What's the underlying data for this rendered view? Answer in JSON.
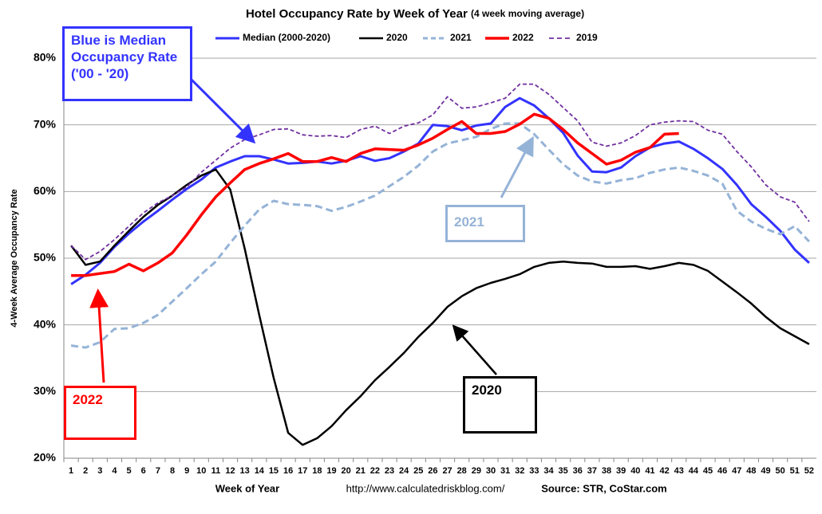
{
  "chart_data": {
    "type": "line",
    "title": "Hotel Occupancy Rate by  Week of Year",
    "subtitle": "(4 week moving average)",
    "x_label": "Week of Year",
    "y_label": "4-Week Average Occupancy Rate",
    "source_url": "http://www.calculatedriskblog.com/",
    "source": "Source: STR, CoStar.com",
    "annotations": [
      "Blue is Median Occupancy Rate ('00 - '20)",
      "2021",
      "2022",
      "2020"
    ],
    "categories": [
      1,
      2,
      3,
      4,
      5,
      6,
      7,
      8,
      9,
      10,
      11,
      12,
      13,
      14,
      15,
      16,
      17,
      18,
      19,
      20,
      21,
      22,
      23,
      24,
      25,
      26,
      27,
      28,
      29,
      30,
      31,
      32,
      33,
      34,
      35,
      36,
      37,
      38,
      39,
      40,
      41,
      42,
      43,
      44,
      45,
      46,
      47,
      48,
      49,
      50,
      51,
      52
    ],
    "ylim": [
      20,
      80
    ],
    "yticks": [
      {
        "value": 20,
        "label": "20%"
      },
      {
        "value": 30,
        "label": "30%"
      },
      {
        "value": 40,
        "label": "40%"
      },
      {
        "value": 50,
        "label": "50%"
      },
      {
        "value": 60,
        "label": "60%"
      },
      {
        "value": 70,
        "label": "70%"
      },
      {
        "value": 80,
        "label": "80%"
      }
    ],
    "grid": true,
    "legend": "top",
    "series": [
      {
        "name": "Median (2000-2020)",
        "color": "#3333ff",
        "dashed": false,
        "values": [
          46.1,
          47.5,
          49.3,
          51.7,
          53.7,
          55.5,
          57.1,
          58.8,
          60.4,
          61.8,
          63.6,
          64.5,
          65.3,
          65.3,
          64.8,
          64.2,
          64.3,
          64.5,
          64.2,
          64.6,
          65.3,
          64.6,
          65,
          66,
          67.2,
          70,
          69.8,
          69.2,
          69.9,
          70.2,
          72.7,
          74,
          72.9,
          71,
          68.8,
          65.4,
          63,
          62.9,
          63.6,
          65.3,
          66.6,
          67.2,
          67.5,
          66.4,
          65,
          63.4,
          61,
          58.1,
          56.2,
          54.1,
          51.3,
          49.3
        ]
      },
      {
        "name": "2020",
        "color": "#000000",
        "dashed": false,
        "values": [
          51.9,
          49,
          49.5,
          51.9,
          54.1,
          56.2,
          58,
          59.4,
          61,
          62.4,
          63.3,
          60.3,
          51.4,
          41.5,
          32,
          23.8,
          22,
          23,
          24.8,
          27.2,
          29.3,
          31.7,
          33.7,
          35.8,
          38.2,
          40.3,
          42.7,
          44.3,
          45.5,
          46.3,
          46.9,
          47.6,
          48.7,
          49.3,
          49.5,
          49.3,
          49.2,
          48.7,
          48.7,
          48.8,
          48.4,
          48.8,
          49.3,
          49,
          48.1,
          46.5,
          44.9,
          43.2,
          41.2,
          39.5,
          38.3,
          37.1
        ]
      },
      {
        "name": "2021",
        "color": "#95b3d7",
        "dashed": true,
        "values": [
          36.9,
          36.6,
          37.4,
          39.4,
          39.5,
          40.3,
          41.5,
          43.5,
          45.5,
          47.6,
          49.5,
          52.3,
          54.9,
          57.3,
          58.6,
          58.1,
          58,
          57.8,
          57.1,
          57.7,
          58.5,
          59.4,
          60.8,
          62.2,
          63.9,
          66,
          67.2,
          67.7,
          68.2,
          69.4,
          70.2,
          70.2,
          68.6,
          66.3,
          64.1,
          62.4,
          61.5,
          61.2,
          61.7,
          62,
          62.8,
          63.3,
          63.6,
          63.1,
          62.4,
          61.2,
          57.1,
          55.5,
          54.4,
          53.6,
          54.8,
          52.5
        ]
      },
      {
        "name": "2022",
        "color": "#ff0000",
        "dashed": false,
        "values": [
          47.4,
          47.4,
          47.7,
          48,
          49.1,
          48.1,
          49.3,
          50.8,
          53.5,
          56.5,
          59.2,
          61.3,
          63.3,
          64.2,
          64.9,
          65.7,
          64.5,
          64.5,
          65.1,
          64.5,
          65.7,
          66.4,
          66.3,
          66.2,
          67,
          68,
          69.3,
          70.5,
          68.7,
          68.7,
          69,
          70.1,
          71.6,
          71,
          69.3,
          67.3,
          65.7,
          64.1,
          64.7,
          65.9,
          66.6,
          68.6,
          68.7,
          null,
          null,
          null,
          null,
          null,
          null,
          null,
          null,
          null
        ]
      },
      {
        "name": "2019",
        "color": "#7030a0",
        "dashed": true,
        "values": [
          51.9,
          49.8,
          51,
          52.8,
          54.8,
          56.8,
          58.3,
          59.4,
          60.7,
          62.9,
          64.7,
          66.5,
          67.8,
          68.5,
          69.3,
          69.4,
          68.5,
          68.3,
          68.4,
          68.1,
          69.3,
          69.8,
          68.7,
          69.8,
          70.3,
          71.5,
          74.2,
          72.5,
          72.7,
          73.3,
          74,
          76.1,
          76.1,
          74.6,
          72.6,
          70.6,
          67.4,
          66.8,
          67.3,
          68.4,
          70,
          70.4,
          70.6,
          70.5,
          69.2,
          68.6,
          66,
          63.7,
          61,
          59.2,
          58.4,
          55.5
        ]
      }
    ]
  }
}
